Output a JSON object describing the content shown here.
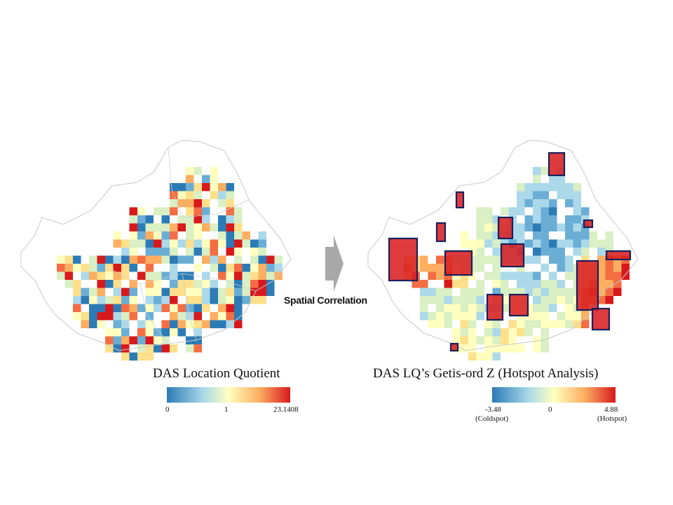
{
  "left_map": {
    "title": "DAS Location Quotient",
    "legend": {
      "min": "0",
      "mid": "1",
      "max": "23.1408"
    }
  },
  "right_map": {
    "title": "DAS LQ’s Getis-ord Z (Hotspot Analysis)",
    "legend": {
      "min": "-3.48",
      "min_note": "(Coldspot)",
      "mid": "0",
      "max": "4.88",
      "max_note": "(Hotspot)"
    }
  },
  "arrow": {
    "label": "Spatial Correlation"
  },
  "colors": {
    "cold": "#2c7bb6",
    "cool": "#abd9e9",
    "neutral": "#ffffbf",
    "warm": "#fdae61",
    "hot": "#d7191c",
    "hotspot_outline": "#1a1f5c",
    "boundary": "#c8c8c8",
    "arrow": "#a8a8a8"
  }
}
